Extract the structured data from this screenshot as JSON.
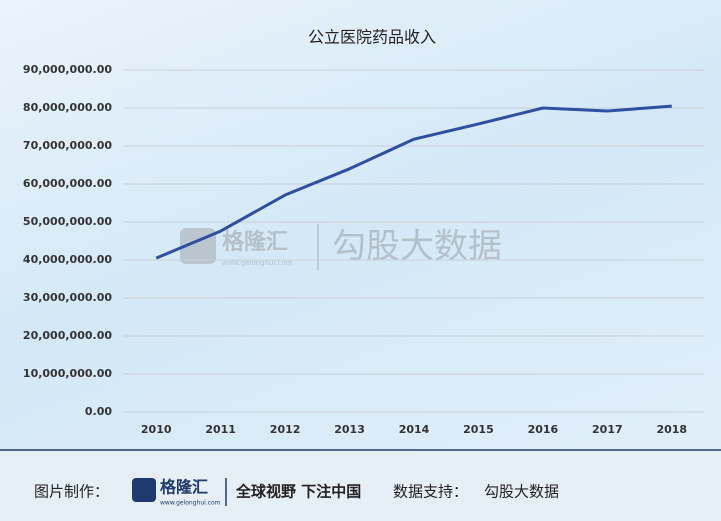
{
  "chart_data": {
    "type": "line",
    "title": "公立医院药品收入",
    "categories": [
      "2010",
      "2011",
      "2012",
      "2013",
      "2014",
      "2015",
      "2016",
      "2017",
      "2018"
    ],
    "series": [
      {
        "color": "#2e4fa3",
        "values": [
          40500000,
          47600000,
          57100000,
          64000000,
          71800000,
          75800000,
          80000000,
          79200000,
          80500000
        ]
      }
    ],
    "ylim": [
      0,
      90000000
    ],
    "yticks": [
      {
        "value": 0,
        "label": "0.00"
      },
      {
        "value": 10000000,
        "label": "10,000,000.00"
      },
      {
        "value": 20000000,
        "label": "20,000,000.00"
      },
      {
        "value": 30000000,
        "label": "30,000,000.00"
      },
      {
        "value": 40000000,
        "label": "40,000,000.00"
      },
      {
        "value": 50000000,
        "label": "50,000,000.00"
      },
      {
        "value": 60000000,
        "label": "60,000,000.00"
      },
      {
        "value": 70000000,
        "label": "70,000,000.00"
      },
      {
        "value": 80000000,
        "label": "80,000,000.00"
      },
      {
        "value": 90000000,
        "label": "90,000,000.00"
      }
    ],
    "grid": true
  },
  "watermark": {
    "brand": "格隆汇",
    "site": "www.gelonghui.com",
    "source": "勾股大数据"
  },
  "footer": {
    "made_by": "图片制作：",
    "brand": "格隆汇",
    "site": "www.gelonghui.com",
    "slogan": "全球视野 下注中国",
    "data_by": "数据支持：",
    "source": "勾股大数据"
  }
}
